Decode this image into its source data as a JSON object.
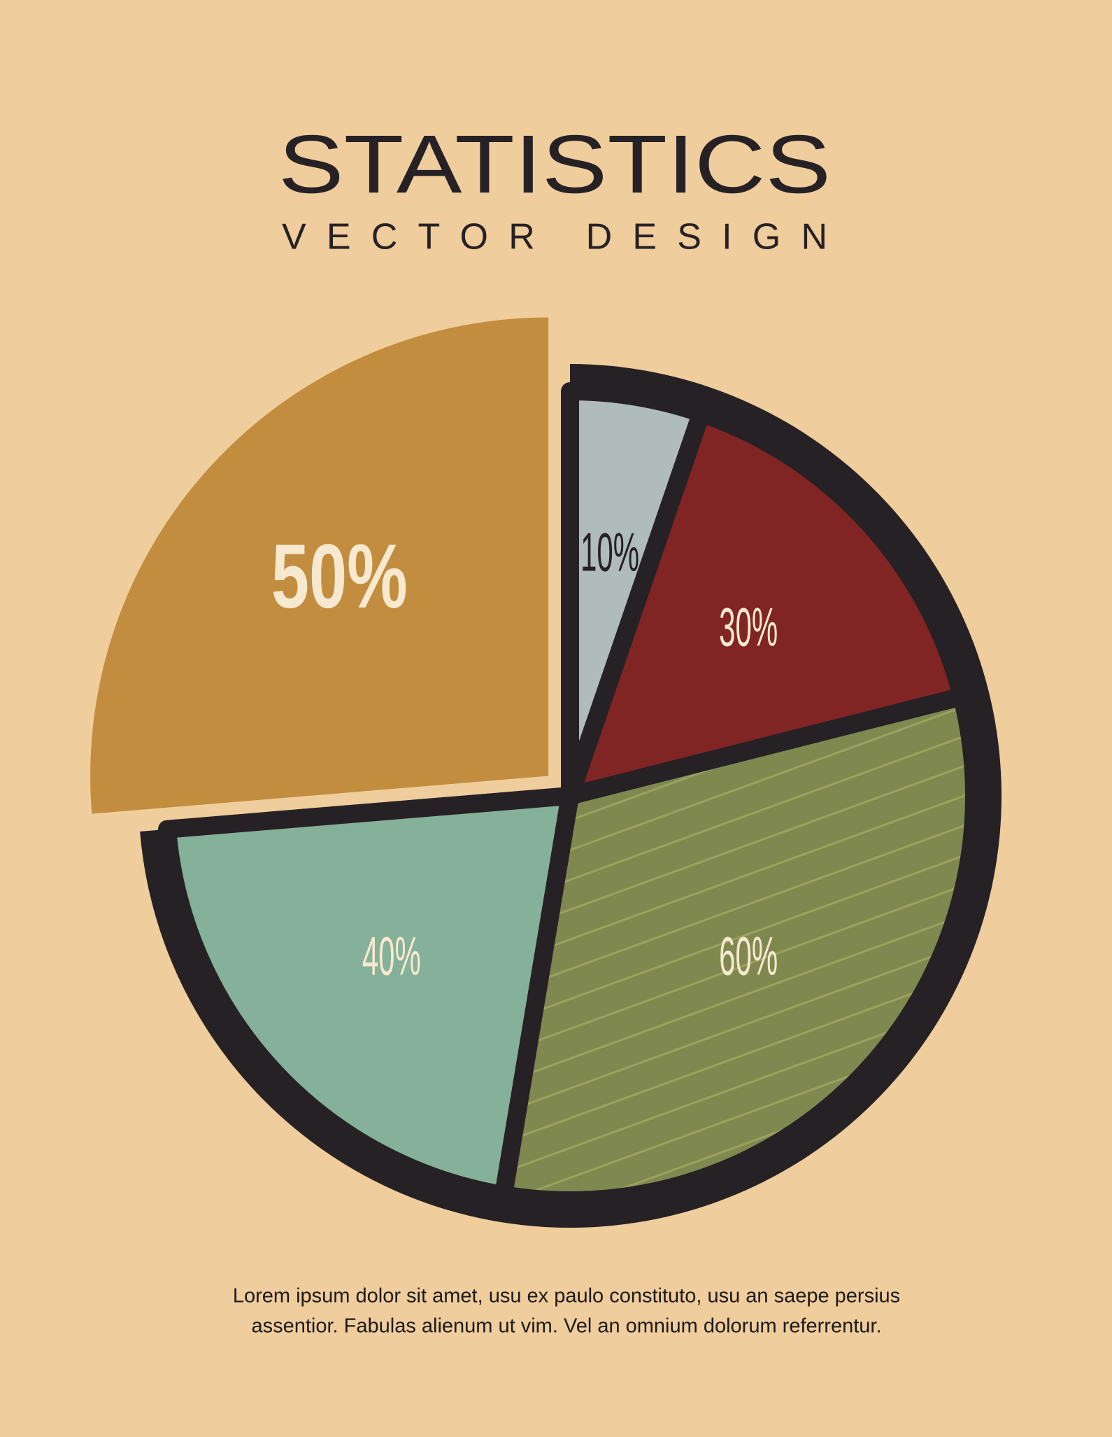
{
  "chart_data": {
    "type": "pie",
    "title": "STATISTICS",
    "subtitle": "VECTOR DESIGN",
    "values": [
      10,
      30,
      60,
      40,
      50
    ],
    "value_labels": [
      "10%",
      "30%",
      "60%",
      "40%",
      "50%"
    ],
    "colors": [
      "#b0bcb9",
      "#802424",
      "#7f884f",
      "#85b099",
      "#c28d3f"
    ],
    "label_colors": [
      "#262125",
      "#f6e9cf",
      "#f6e9cf",
      "#f6e9cf",
      "#f6e9cf"
    ],
    "exploded": 4,
    "hatched": 2,
    "caption": [
      "Lorem ipsum dolor sit amet, usu ex paulo constituto, usu an saepe persius",
      "assentior. Fabulas alienum ut vim. Vel an omnium dolorum referrentur."
    ]
  }
}
